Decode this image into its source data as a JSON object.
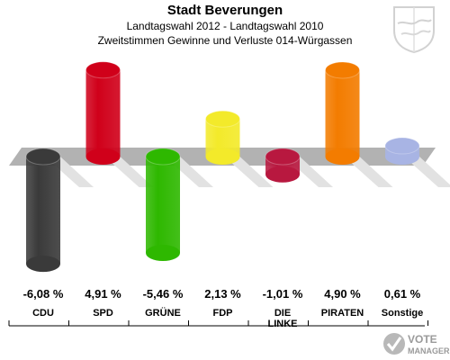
{
  "header": {
    "title": "Stadt Beverungen",
    "subtitle": "Landtagswahl 2012 - Landtagswahl 2010",
    "subtitle2": "Zweitstimmen Gewinne und Verluste 014-Würgassen"
  },
  "logo": {
    "line1": "VOTE",
    "line2": "MANAGER"
  },
  "chart_data": {
    "type": "bar",
    "categories": [
      "CDU",
      "SPD",
      "GRÜNE",
      "FDP",
      "DIE LINKE",
      "PIRATEN",
      "Sonstige"
    ],
    "values": [
      -6.08,
      4.91,
      -5.46,
      2.13,
      -1.01,
      4.9,
      0.61
    ],
    "value_labels": [
      "-6,08 %",
      "4,91 %",
      "-5,46 %",
      "2,13 %",
      "-1,01 %",
      "4,90 %",
      "0,61 %"
    ],
    "colors": [
      "#3a3a3a",
      "#d0001a",
      "#2eb800",
      "#f3ea2a",
      "#b8183f",
      "#f37c00",
      "#a8b4e4"
    ],
    "ylim": [
      -6.08,
      4.91
    ],
    "grid": false,
    "legend": "none"
  }
}
